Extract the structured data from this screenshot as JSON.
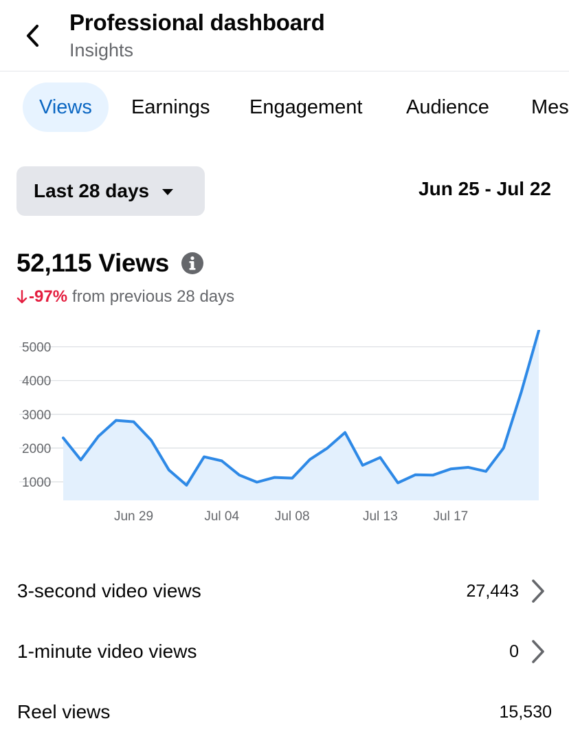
{
  "header": {
    "title": "Professional dashboard",
    "subtitle": "Insights",
    "back_icon": "chevron-left-icon"
  },
  "tabs": [
    {
      "label": "Views",
      "active": true
    },
    {
      "label": "Earnings",
      "active": false
    },
    {
      "label": "Engagement",
      "active": false
    },
    {
      "label": "Audience",
      "active": false
    },
    {
      "label": "Messaging",
      "active": false
    }
  ],
  "filter": {
    "range_label": "Last 28 days",
    "date_range": "Jun 25 - Jul 22"
  },
  "summary": {
    "total": "52,115 Views",
    "change_pct": "-97%",
    "change_text": "from previous 28 days",
    "change_color": "#e41e3f"
  },
  "chart_data": {
    "type": "area",
    "series_color": "#2e89e6",
    "fill_color": "#e3f0fd",
    "ylim": [
      450,
      5500
    ],
    "yticks": [
      1000,
      2000,
      3000,
      4000,
      5000
    ],
    "ytick_labels": [
      "1000",
      "2000",
      "3000",
      "4000",
      "5000"
    ],
    "xtick_labels": [
      {
        "label": "Jun 29",
        "index": 4
      },
      {
        "label": "Jul 04",
        "index": 9
      },
      {
        "label": "Jul 08",
        "index": 13
      },
      {
        "label": "Jul 13",
        "index": 18
      },
      {
        "label": "Jul 17",
        "index": 22
      }
    ],
    "x": [
      "Jun 25",
      "Jun 26",
      "Jun 27",
      "Jun 28",
      "Jun 29",
      "Jun 30",
      "Jul 01",
      "Jul 02",
      "Jul 03",
      "Jul 04",
      "Jul 05",
      "Jul 06",
      "Jul 07",
      "Jul 08",
      "Jul 09",
      "Jul 10",
      "Jul 11",
      "Jul 12",
      "Jul 13",
      "Jul 14",
      "Jul 15",
      "Jul 16",
      "Jul 17",
      "Jul 18",
      "Jul 19",
      "Jul 20",
      "Jul 21",
      "Jul 22"
    ],
    "values": [
      2300,
      1650,
      2350,
      2820,
      2780,
      2230,
      1350,
      900,
      1740,
      1620,
      1200,
      990,
      1130,
      1110,
      1660,
      2000,
      2460,
      1490,
      1720,
      970,
      1210,
      1200,
      1380,
      1430,
      1310,
      2000,
      3650,
      5480
    ],
    "grid": true
  },
  "metrics": [
    {
      "label": "3-second video views",
      "value": "27,443",
      "chevron": true
    },
    {
      "label": "1-minute video views",
      "value": "0",
      "chevron": true
    },
    {
      "label": "Reel views",
      "value": "15,530",
      "chevron": false
    }
  ]
}
